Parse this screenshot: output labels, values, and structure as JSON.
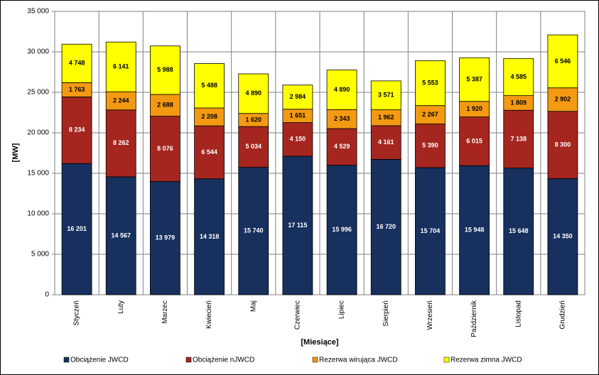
{
  "chart_data": {
    "type": "stacked-bar",
    "x_label": "[Miesiące]",
    "y_label": "[MW]",
    "categories": [
      "Styczeń",
      "Luty",
      "Marzec",
      "Kwiecień",
      "Maj",
      "Czerwiec",
      "Lipiec",
      "Sierpień",
      "Wrzesień",
      "Październik",
      "Listopad",
      "Grudzień"
    ],
    "series": [
      {
        "name": "Obciążenie JWCD",
        "color": "#17305e",
        "values": [
          16201,
          14567,
          13979,
          14318,
          15740,
          17115,
          15996,
          16720,
          15704,
          15948,
          15648,
          14350
        ],
        "value_labels": [
          "16 201",
          "14 567",
          "13 979",
          "14 318",
          "15 740",
          "17 115",
          "15 996",
          "16 720",
          "15 704",
          "15 948",
          "15 648",
          "14 350"
        ]
      },
      {
        "name": "Obciążenie nJWCD",
        "color": "#a5261f",
        "values": [
          8234,
          8262,
          8076,
          6544,
          5034,
          4150,
          4529,
          4161,
          5390,
          6015,
          7138,
          8300
        ],
        "value_labels": [
          "8 234",
          "8 262",
          "8 076",
          "6 544",
          "5 034",
          "4 150",
          "4 529",
          "4 161",
          "5 390",
          "6 015",
          "7 138",
          "8 300"
        ]
      },
      {
        "name": "Rezerwa wirująca JWCD",
        "color": "#f39a12",
        "values": [
          1763,
          2244,
          2688,
          2208,
          1620,
          1651,
          2343,
          1962,
          2267,
          1920,
          1809,
          2902
        ],
        "value_labels": [
          "1 763",
          "2 244",
          "2 688",
          "2 208",
          "1 620",
          "1 651",
          "2 343",
          "1 962",
          "2 267",
          "1 920",
          "1 809",
          "2 902"
        ]
      },
      {
        "name": "Rezerwa zimna JWCD",
        "color": "#ffff00",
        "values": [
          4748,
          6141,
          5988,
          5488,
          4890,
          2984,
          4890,
          3571,
          5553,
          5387,
          4585,
          6546
        ],
        "value_labels": [
          "4 748",
          "6 141",
          "5 988",
          "5 488",
          "4 890",
          "2 984",
          "4 890",
          "3 571",
          "5 553",
          "5 387",
          "4 585",
          "6 546"
        ]
      }
    ],
    "ylim": [
      0,
      35000
    ],
    "yticks": [
      0,
      {
        "value": 5000,
        "label": "5 000"
      },
      {
        "value": 10000,
        "label": "10 000"
      },
      {
        "value": 15000,
        "label": "15 000"
      },
      {
        "value": 20000,
        "label": "20 000"
      },
      {
        "value": 25000,
        "label": "25 000"
      },
      {
        "value": 30000,
        "label": "30 000"
      },
      {
        "value": 35000,
        "label": "35 000"
      }
    ],
    "grid": true,
    "legend": "bottom"
  }
}
